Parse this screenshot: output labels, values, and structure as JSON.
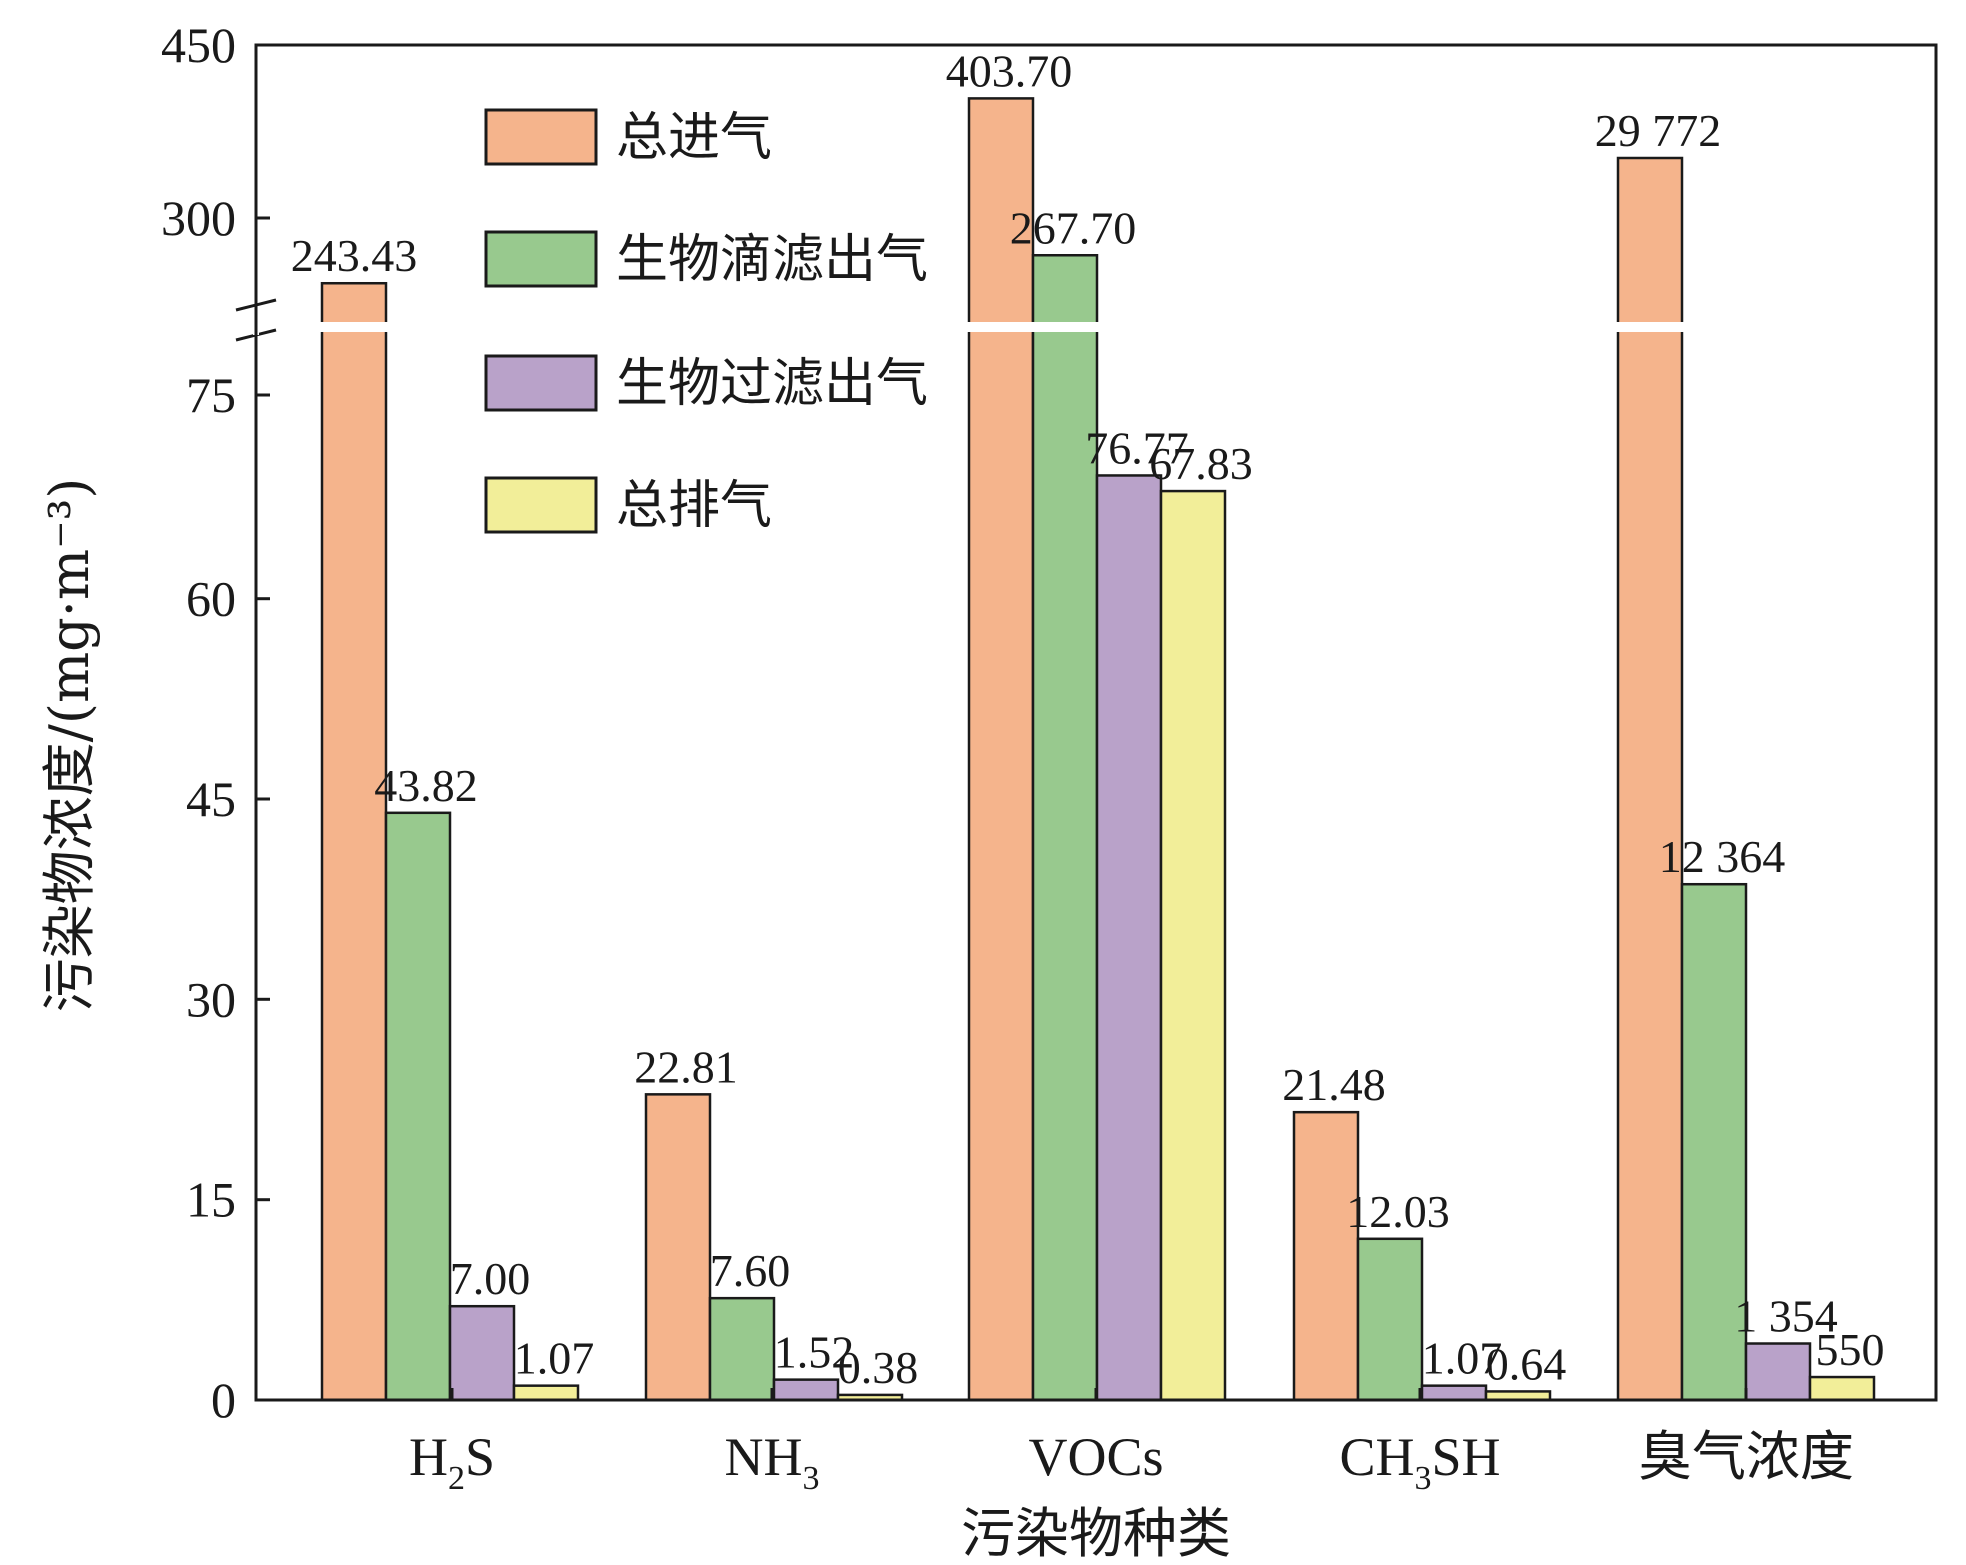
{
  "chart_data": {
    "type": "bar",
    "xlabel": "污染物种类",
    "ylabel": "污染物浓度/(mg·m⁻³)",
    "axis_break": true,
    "y_ticks": [
      "0",
      "15",
      "30",
      "45",
      "60",
      "75",
      "300",
      "450"
    ],
    "categories": [
      {
        "main": "H",
        "sub": "2",
        "tail": "S"
      },
      {
        "main": "NH",
        "sub": "3",
        "tail": ""
      },
      {
        "main": "VOCs",
        "sub": "",
        "tail": ""
      },
      {
        "main": "CH",
        "sub": "3",
        "tail": "SH"
      },
      {
        "main": "臭气浓度",
        "sub": "",
        "tail": ""
      }
    ],
    "series": [
      {
        "name": "总进气",
        "color": "#F5B48C",
        "values": [
          243.43,
          22.81,
          403.7,
          21.48,
          29772
        ],
        "labels": [
          "243.43",
          "22.81",
          "403.70",
          "21.48",
          "29 772"
        ]
      },
      {
        "name": "生物滴滤出气",
        "color": "#98C98E",
        "values": [
          43.82,
          7.6,
          267.7,
          12.03,
          12364
        ],
        "labels": [
          "43.82",
          "7.60",
          "267.70",
          "12.03",
          "12 364"
        ]
      },
      {
        "name": "生物过滤出气",
        "color": "#B9A2C9",
        "values": [
          7.0,
          1.52,
          76.77,
          1.07,
          1354
        ],
        "labels": [
          "7.00",
          "1.52",
          "76.77",
          "1.07",
          "1 354"
        ]
      },
      {
        "name": "总排气",
        "color": "#F2EE99",
        "values": [
          1.07,
          0.38,
          67.83,
          0.64,
          550
        ],
        "labels": [
          "1.07",
          "0.38",
          "67.83",
          "0.64",
          "550"
        ]
      }
    ],
    "legend_position": "top-left",
    "grid": false
  }
}
